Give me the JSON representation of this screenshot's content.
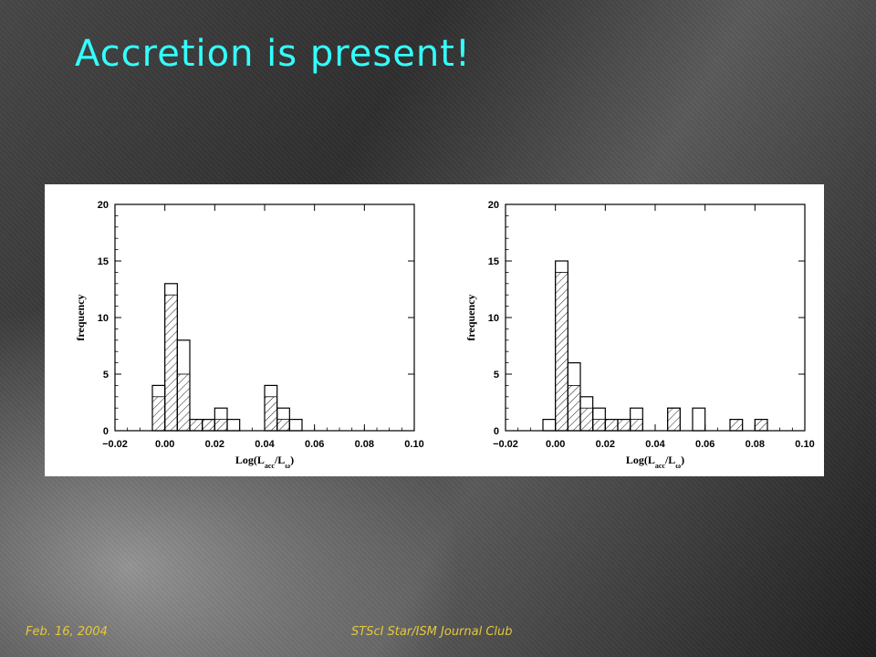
{
  "slide": {
    "title": "Accretion is present!",
    "footer_left": "Feb. 16, 2004",
    "footer_center": "STScI Star/ISM Journal Club"
  },
  "colors": {
    "title": "#33ffff",
    "footer": "#e6c73b",
    "bars": "#000000",
    "panel": "#ffffff"
  },
  "chart_data": [
    {
      "type": "bar",
      "bin_width": 0.005,
      "xlabel": "Log(L",
      "xlabel_sub1": "acc",
      "xlabel_mid": "/L",
      "xlabel_sub2": "ω",
      "xlabel_end": ")",
      "ylabel": "frequency",
      "xlim": [
        -0.02,
        0.1
      ],
      "ylim": [
        0,
        20
      ],
      "x_ticks": [
        "−0.02",
        "0.00",
        "0.02",
        "0.04",
        "0.06",
        "0.08",
        "0.10"
      ],
      "y_ticks": [
        "0",
        "5",
        "10",
        "15",
        "20"
      ],
      "bins": [
        -0.005,
        0.0,
        0.005,
        0.01,
        0.015,
        0.02,
        0.025,
        0.03,
        0.035,
        0.04,
        0.045,
        0.05,
        0.055
      ],
      "series": [
        {
          "style": "open",
          "values": [
            4,
            13,
            8,
            1,
            1,
            2,
            1,
            0,
            0,
            4,
            2,
            1,
            0
          ]
        },
        {
          "style": "hatched",
          "values": [
            3,
            12,
            5,
            1,
            1,
            1,
            0,
            0,
            0,
            3,
            1,
            0,
            0
          ]
        }
      ]
    },
    {
      "type": "bar",
      "bin_width": 0.005,
      "xlabel": "Log(L",
      "xlabel_sub1": "acc",
      "xlabel_mid": "/L",
      "xlabel_sub2": "ω",
      "xlabel_end": ")",
      "ylabel": "frequency",
      "xlim": [
        -0.02,
        0.1
      ],
      "ylim": [
        0,
        20
      ],
      "x_ticks": [
        "−0.02",
        "0.00",
        "0.02",
        "0.04",
        "0.06",
        "0.08",
        "0.10"
      ],
      "y_ticks": [
        "0",
        "5",
        "10",
        "15",
        "20"
      ],
      "bins": [
        -0.005,
        0.0,
        0.005,
        0.01,
        0.015,
        0.02,
        0.025,
        0.03,
        0.035,
        0.04,
        0.045,
        0.05,
        0.055,
        0.06,
        0.065,
        0.07,
        0.075,
        0.08
      ],
      "series": [
        {
          "style": "open",
          "values": [
            1,
            15,
            6,
            3,
            2,
            1,
            1,
            2,
            0,
            0,
            2,
            0,
            2,
            0,
            0,
            1,
            0,
            1
          ]
        },
        {
          "style": "hatched",
          "values": [
            0,
            14,
            4,
            2,
            1,
            1,
            1,
            1,
            0,
            0,
            2,
            0,
            0,
            0,
            0,
            1,
            0,
            1
          ]
        }
      ]
    }
  ]
}
